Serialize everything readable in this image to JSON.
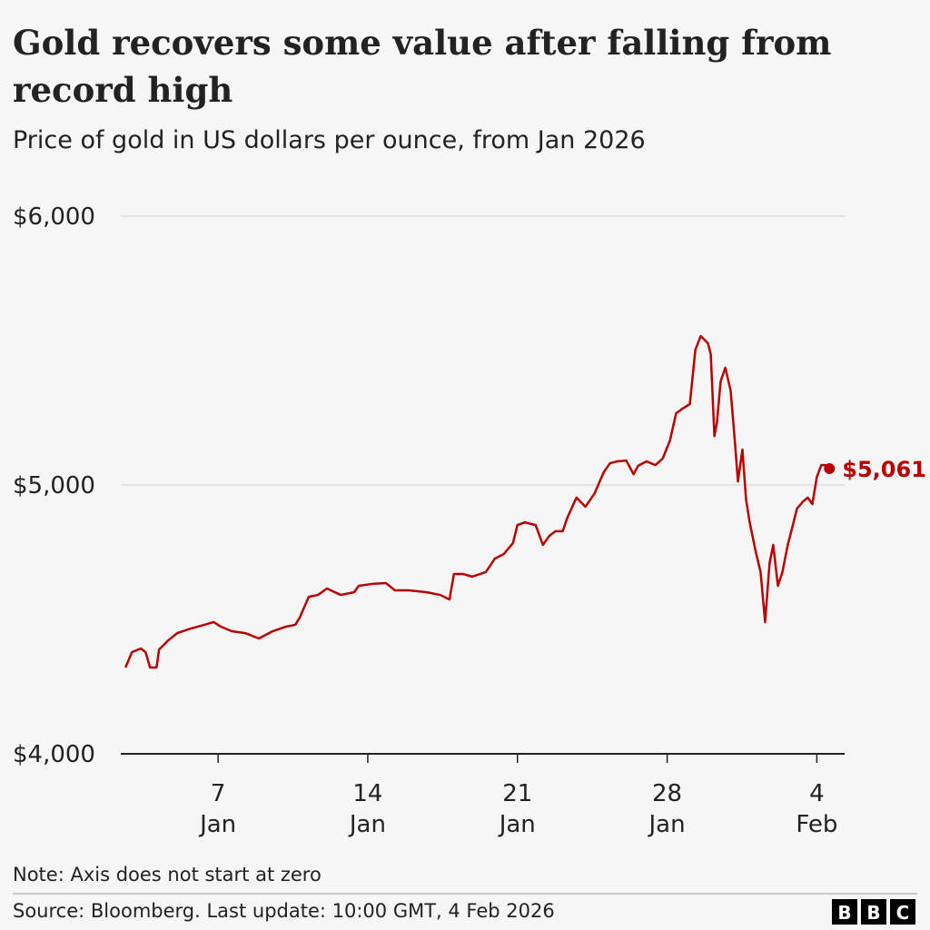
{
  "chart_data": {
    "type": "line",
    "title_lines": [
      "Gold recovers some value after falling from",
      "record high"
    ],
    "subtitle": "Price of gold in US dollars per ounce, from Jan 2026",
    "x": [
      2.67,
      2.97,
      3.39,
      3.61,
      3.82,
      4.12,
      4.24,
      4.67,
      5.09,
      5.73,
      6.36,
      6.79,
      7.13,
      7.64,
      8.27,
      8.91,
      9.55,
      10.18,
      10.61,
      10.82,
      11.24,
      11.67,
      12.09,
      12.73,
      13.36,
      13.58,
      14.21,
      14.85,
      15.27,
      15.91,
      16.76,
      17.39,
      17.82,
      18.03,
      18.45,
      18.88,
      19.52,
      19.94,
      20.36,
      20.79,
      21.0,
      21.34,
      21.85,
      22.19,
      22.49,
      22.78,
      23.12,
      23.33,
      23.76,
      24.18,
      24.61,
      25.03,
      25.33,
      25.67,
      26.09,
      26.43,
      26.64,
      27.03,
      27.45,
      27.79,
      28.13,
      28.42,
      28.72,
      29.06,
      29.32,
      29.57,
      29.91,
      30.04,
      30.21,
      30.33,
      30.5,
      30.72,
      30.97,
      31.18,
      31.31,
      31.52,
      31.69,
      31.86,
      32.12,
      32.37,
      32.58,
      32.79,
      32.96,
      33.18,
      33.39,
      33.64,
      33.86,
      34.07,
      34.36,
      34.58,
      34.79,
      35.0,
      35.21,
      35.42,
      35.59
    ],
    "series": [
      {
        "name": "Gold",
        "color": "#b80000",
        "values": [
          4321,
          4378,
          4392,
          4378,
          4321,
          4321,
          4388,
          4422,
          4449,
          4466,
          4480,
          4490,
          4473,
          4456,
          4449,
          4429,
          4456,
          4473,
          4480,
          4507,
          4584,
          4591,
          4615,
          4591,
          4601,
          4625,
          4632,
          4635,
          4608,
          4608,
          4601,
          4591,
          4574,
          4669,
          4669,
          4659,
          4676,
          4726,
          4743,
          4784,
          4851,
          4861,
          4851,
          4777,
          4811,
          4828,
          4828,
          4878,
          4953,
          4919,
          4969,
          5047,
          5081,
          5088,
          5091,
          5040,
          5071,
          5088,
          5074,
          5098,
          5165,
          5267,
          5284,
          5301,
          5503,
          5554,
          5527,
          5486,
          5182,
          5233,
          5385,
          5436,
          5351,
          5149,
          5013,
          5132,
          4946,
          4861,
          4760,
          4676,
          4490,
          4709,
          4777,
          4625,
          4676,
          4777,
          4845,
          4912,
          4939,
          4953,
          4929,
          5030,
          5074,
          5074,
          5061
        ]
      }
    ],
    "annotation": {
      "x": 35.59,
      "value": 5061,
      "label": "$5,061"
    },
    "xlim": [
      2.45,
      36.3
    ],
    "xticks": [
      {
        "value": 7,
        "label": "7 Jan"
      },
      {
        "value": 14,
        "label": "14 Jan"
      },
      {
        "value": 21,
        "label": "21 Jan"
      },
      {
        "value": 28,
        "label": "28 Jan"
      },
      {
        "value": 35,
        "label": "4 Feb"
      }
    ],
    "ylim": [
      4000,
      6000
    ],
    "yticks": [
      {
        "value": 4000,
        "label": "$4,000"
      },
      {
        "value": 5000,
        "label": "$5,000"
      },
      {
        "value": 6000,
        "label": "$6,000"
      }
    ],
    "grid": true,
    "note": "Note: Axis does not start at zero",
    "source": "Source: Bloomberg. Last update: 10:00 GMT, 4 Feb 2026",
    "logo": [
      "B",
      "B",
      "C"
    ]
  }
}
